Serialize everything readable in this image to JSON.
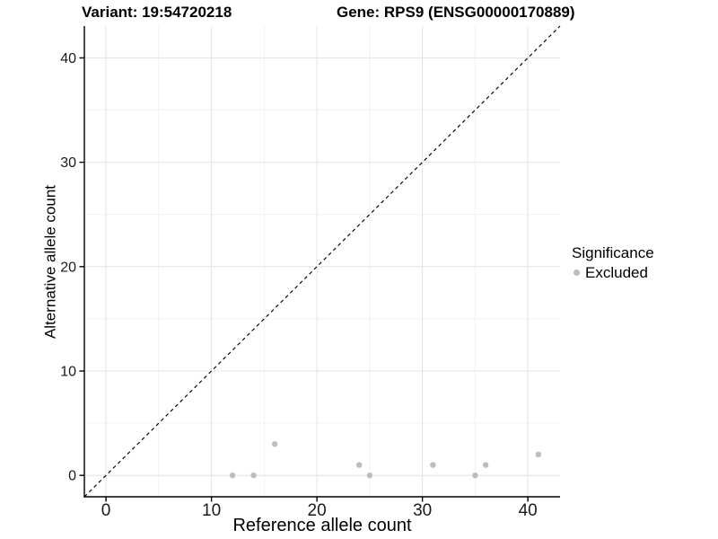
{
  "chart_data": {
    "type": "scatter",
    "title_left": "Variant: 19:54720218",
    "title_right": "Gene: RPS9 (ENSG00000170889)",
    "xlabel": "Reference allele count",
    "ylabel": "Alternative allele count",
    "xlim": [
      -2.05,
      43.05
    ],
    "ylim": [
      -2.05,
      43.05
    ],
    "x_major_ticks": [
      0,
      10,
      20,
      30,
      40
    ],
    "x_tick_labels": [
      "0",
      "10",
      "20",
      "30",
      "40"
    ],
    "y_major_ticks": [
      0,
      10,
      20,
      30,
      40
    ],
    "y_tick_labels": [
      "0",
      "10",
      "20",
      "30",
      "40"
    ],
    "x_minor_gridlines": [
      5,
      15,
      25,
      35
    ],
    "y_minor_gridlines": [
      5,
      15,
      25,
      35
    ],
    "grid": true,
    "legend_position": "right",
    "identity_line": {
      "style": "dashed",
      "slope": 1,
      "intercept": 0,
      "color": "#000000"
    },
    "series": [
      {
        "name": "Excluded",
        "color": "#bdbdbd",
        "points": [
          [
            12,
            0
          ],
          [
            14,
            0
          ],
          [
            16,
            3
          ],
          [
            24,
            1
          ],
          [
            25,
            0
          ],
          [
            31,
            1
          ],
          [
            35,
            0
          ],
          [
            36,
            1
          ],
          [
            41,
            2
          ]
        ]
      }
    ],
    "legend": {
      "title": "Significance",
      "entries": [
        {
          "label": "Excluded",
          "color": "#bdbdbd"
        }
      ]
    },
    "colors": {
      "point": "#bdbdbd",
      "grid_major": "#e4e4e4",
      "grid_minor": "#f0f0f0",
      "axis": "#000000",
      "tick_text": "#1a1a1a",
      "background": "#ffffff"
    }
  }
}
